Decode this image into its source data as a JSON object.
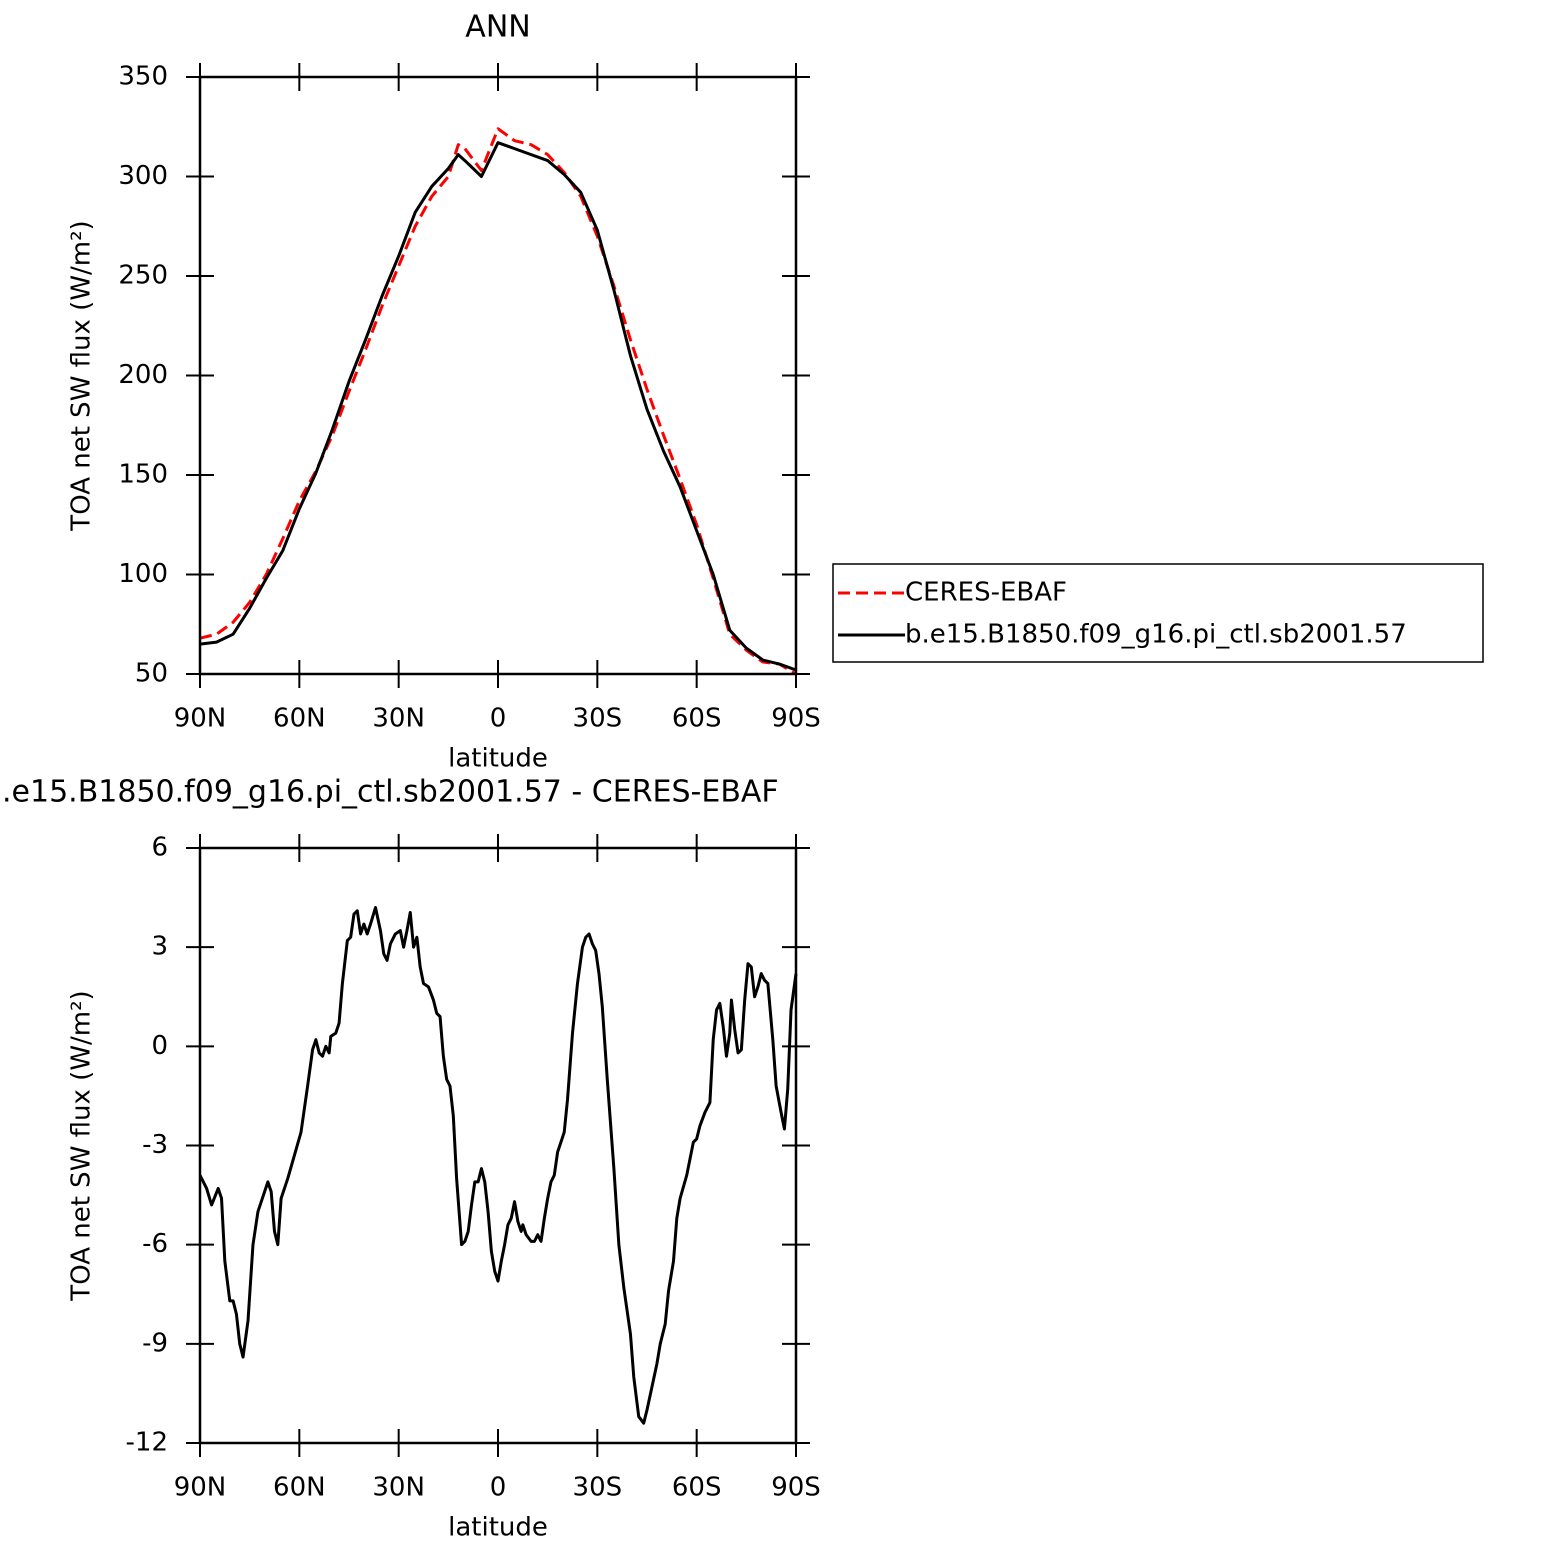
{
  "chart_data": [
    {
      "type": "line",
      "title": "ANN",
      "x_label": "latitude",
      "y_label": "TOA net SW flux (W/m²)",
      "x": [
        90,
        85,
        80,
        75,
        70,
        65,
        60,
        55,
        50,
        45,
        40,
        35,
        30,
        25,
        20,
        15,
        12,
        10,
        5,
        0,
        -5,
        -10,
        -15,
        -20,
        -25,
        -30,
        -35,
        -40,
        -45,
        -50,
        -55,
        -60,
        -65,
        -70,
        -75,
        -80,
        -85,
        -90
      ],
      "series": [
        {
          "name": "CERES-EBAF",
          "color": "#ff0000",
          "line_style": "dashed",
          "values": [
            68,
            70,
            76,
            86,
            100,
            118,
            137,
            152,
            170,
            192,
            213,
            235,
            255,
            275,
            290,
            300,
            316,
            314,
            303,
            324,
            318,
            316,
            311,
            302,
            290,
            270,
            245,
            218,
            193,
            170,
            148,
            125,
            98,
            70,
            62,
            56,
            55,
            50
          ]
        },
        {
          "name": "b.e15.B1850.f09_g16.pi_ctl.sb2001.57",
          "color": "#000000",
          "line_style": "solid",
          "values": [
            65,
            66,
            70,
            83,
            98,
            112,
            133,
            151,
            173,
            197,
            218,
            240,
            260,
            282,
            295,
            304,
            311,
            308,
            300,
            317,
            314,
            311,
            308,
            301,
            292,
            273,
            243,
            210,
            183,
            162,
            144,
            122,
            100,
            72,
            63,
            57,
            55,
            52
          ]
        }
      ],
      "xlim": [
        90,
        -90
      ],
      "xticks": [
        {
          "value": 90,
          "label": "90N"
        },
        {
          "value": 60,
          "label": "60N"
        },
        {
          "value": 30,
          "label": "30N"
        },
        0,
        {
          "value": -30,
          "label": "30S"
        },
        {
          "value": -60,
          "label": "60S"
        },
        {
          "value": -90,
          "label": "90S"
        }
      ],
      "ylim": [
        50,
        350
      ],
      "yticks": [
        50,
        100,
        150,
        200,
        250,
        300,
        350
      ],
      "legend": "right"
    },
    {
      "type": "line",
      "title": ".e15.B1850.f09_g16.pi_ctl.sb2001.57 - CERES-EBAF",
      "x_label": "latitude",
      "y_label": "TOA net SW flux (W/m²)",
      "x": [
        90,
        88,
        86.5,
        84.5,
        83.5,
        82.5,
        81,
        80,
        79,
        78,
        77,
        75.5,
        74,
        72.5,
        71.5,
        69.5,
        68.5,
        67.5,
        66.5,
        65.5,
        63.5,
        61.5,
        59.5,
        57.5,
        56,
        55,
        54,
        53,
        52,
        51,
        50.5,
        49,
        48,
        47,
        45.5,
        44.5,
        43.5,
        42.5,
        41.5,
        40.5,
        39.5,
        38.5,
        37,
        35.5,
        34.5,
        33.5,
        32.5,
        31,
        29.5,
        28.5,
        27.5,
        26.5,
        25.5,
        24.5,
        23.5,
        22.5,
        21,
        19.5,
        18.5,
        17.5,
        16.5,
        15.5,
        14.5,
        13.5,
        12.5,
        11,
        10,
        9,
        8,
        7,
        6,
        5,
        4,
        3,
        2,
        1,
        0,
        -1,
        -2,
        -3,
        -4,
        -5,
        -6,
        -7,
        -7.5,
        -8.5,
        -10,
        -11,
        -12,
        -13,
        -14,
        -15,
        -16,
        -17,
        -18,
        -20,
        -21,
        -22.5,
        -24,
        -25.5,
        -26.5,
        -27.5,
        -28.5,
        -29.5,
        -30.5,
        -31.5,
        -33,
        -35,
        -36.5,
        -38,
        -40,
        -41,
        -42.5,
        -44,
        -45,
        -46.5,
        -48,
        -49,
        -50.5,
        -51.5,
        -53,
        -54,
        -55,
        -57,
        -59,
        -60,
        -61,
        -62.5,
        -64,
        -65,
        -66,
        -67,
        -68,
        -69,
        -70,
        -70.5,
        -71.5,
        -72.5,
        -73.5,
        -74.5,
        -75.5,
        -76.5,
        -77.5,
        -78.5,
        -79.5,
        -80.5,
        -81.5,
        -83,
        -84,
        -85.5,
        -86.5,
        -87.5,
        -88.5,
        -90
      ],
      "values": [
        -3.9,
        -4.3,
        -4.8,
        -4.3,
        -4.6,
        -6.5,
        -7.7,
        -7.7,
        -8.1,
        -9.0,
        -9.4,
        -8.3,
        -6,
        -5,
        -4.7,
        -4.1,
        -4.4,
        -5.6,
        -6.0,
        -4.6,
        -4.0,
        -3.3,
        -2.6,
        -1.2,
        -0.1,
        0.2,
        -0.2,
        -0.3,
        0,
        -0.2,
        0.3,
        0.4,
        0.7,
        1.9,
        3.2,
        3.3,
        4.0,
        4.1,
        3.4,
        3.7,
        3.4,
        3.7,
        4.2,
        3.5,
        2.8,
        2.6,
        3.1,
        3.4,
        3.5,
        3.0,
        3.5,
        4.05,
        3.0,
        3.3,
        2.4,
        1.9,
        1.8,
        1.4,
        1.0,
        0.9,
        -0.3,
        -1.0,
        -1.2,
        -2.1,
        -4.0,
        -6.0,
        -5.9,
        -5.6,
        -4.8,
        -4.1,
        -4.1,
        -3.7,
        -4.1,
        -5.0,
        -6.2,
        -6.8,
        -7.1,
        -6.5,
        -6.0,
        -5.4,
        -5.2,
        -4.7,
        -5.3,
        -5.6,
        -5.4,
        -5.7,
        -5.9,
        -5.9,
        -5.7,
        -5.9,
        -5.2,
        -4.6,
        -4.1,
        -3.9,
        -3.2,
        -2.6,
        -1.6,
        0.4,
        1.9,
        3.0,
        3.3,
        3.4,
        3.1,
        2.9,
        2.2,
        1.2,
        -1.0,
        -3.7,
        -6.0,
        -7.3,
        -8.7,
        -10.0,
        -11.2,
        -11.4,
        -11.0,
        -10.3,
        -9.6,
        -9.0,
        -8.4,
        -7.4,
        -6.5,
        -5.2,
        -4.6,
        -3.9,
        -2.9,
        -2.8,
        -2.4,
        -2.0,
        -1.7,
        0.2,
        1.1,
        1.3,
        0.6,
        -0.3,
        0.4,
        1.4,
        0.5,
        -0.2,
        -0.1,
        1.4,
        2.5,
        2.4,
        1.5,
        1.8,
        2.2,
        2.0,
        1.9,
        0.2,
        -1.2,
        -2.0,
        -2.5,
        -1.3,
        1.1,
        2.2
      ],
      "color": "#000000",
      "xlim": [
        90,
        -90
      ],
      "xticks": [
        {
          "value": 90,
          "label": "90N"
        },
        {
          "value": 60,
          "label": "60N"
        },
        {
          "value": 30,
          "label": "30N"
        },
        0,
        {
          "value": -30,
          "label": "30S"
        },
        {
          "value": -60,
          "label": "60S"
        },
        {
          "value": -90,
          "label": "90S"
        }
      ],
      "ylim": [
        -12,
        6
      ],
      "yticks": [
        -12,
        -9,
        -6,
        -3,
        0,
        3,
        6
      ]
    }
  ]
}
